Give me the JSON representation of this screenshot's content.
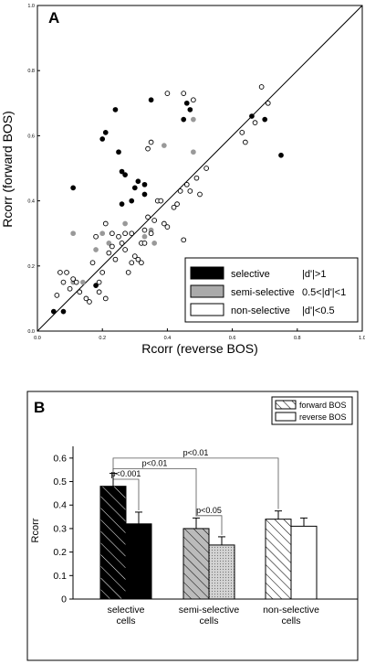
{
  "chart_data": [
    {
      "panel_label": "A",
      "type": "scatter",
      "xlabel": "Rcorr (reverse BOS)",
      "ylabel": "Rcorr (forward BOS)",
      "xlim": [
        0,
        1
      ],
      "ylim": [
        0,
        1
      ],
      "x_ticks": [
        "0.0",
        "0.2",
        "0.4",
        "0.6",
        "0.8",
        "1.0"
      ],
      "y_ticks": [
        "0.0",
        "0.2",
        "0.4",
        "0.6",
        "0.8",
        "1.0"
      ],
      "diagonal": "unity line",
      "legend_position": "bottom-right",
      "legend": [
        {
          "label": "selective",
          "criterion": "|d'|>1",
          "color": "#000000"
        },
        {
          "label": "semi-selective",
          "criterion": "0.5<|d'|<1",
          "color": "#999999"
        },
        {
          "label": "non-selective",
          "criterion": "|d'|<0.5",
          "color": "#ffffff"
        }
      ],
      "series": [
        {
          "name": "selective",
          "color": "#000000",
          "points": [
            [
              0.05,
              0.06
            ],
            [
              0.08,
              0.06
            ],
            [
              0.11,
              0.44
            ],
            [
              0.18,
              0.14
            ],
            [
              0.2,
              0.59
            ],
            [
              0.21,
              0.61
            ],
            [
              0.24,
              0.68
            ],
            [
              0.25,
              0.55
            ],
            [
              0.26,
              0.39
            ],
            [
              0.26,
              0.49
            ],
            [
              0.27,
              0.48
            ],
            [
              0.29,
              0.4
            ],
            [
              0.3,
              0.44
            ],
            [
              0.31,
              0.46
            ],
            [
              0.33,
              0.45
            ],
            [
              0.33,
              0.42
            ],
            [
              0.35,
              0.71
            ],
            [
              0.45,
              0.65
            ],
            [
              0.46,
              0.7
            ],
            [
              0.47,
              0.68
            ],
            [
              0.66,
              0.66
            ],
            [
              0.7,
              0.65
            ],
            [
              0.75,
              0.54
            ]
          ]
        },
        {
          "name": "semi-selective",
          "color": "#999999",
          "points": [
            [
              0.11,
              0.15
            ],
            [
              0.11,
              0.3
            ],
            [
              0.14,
              0.15
            ],
            [
              0.18,
              0.25
            ],
            [
              0.2,
              0.3
            ],
            [
              0.22,
              0.27
            ],
            [
              0.27,
              0.33
            ],
            [
              0.33,
              0.29
            ],
            [
              0.35,
              0.31
            ],
            [
              0.36,
              0.27
            ],
            [
              0.39,
              0.57
            ],
            [
              0.48,
              0.55
            ],
            [
              0.48,
              0.65
            ]
          ]
        },
        {
          "name": "non-selective",
          "color": "#ffffff",
          "points": [
            [
              0.06,
              0.11
            ],
            [
              0.07,
              0.18
            ],
            [
              0.08,
              0.15
            ],
            [
              0.09,
              0.18
            ],
            [
              0.1,
              0.13
            ],
            [
              0.11,
              0.16
            ],
            [
              0.12,
              0.15
            ],
            [
              0.13,
              0.12
            ],
            [
              0.15,
              0.1
            ],
            [
              0.16,
              0.09
            ],
            [
              0.17,
              0.21
            ],
            [
              0.18,
              0.29
            ],
            [
              0.19,
              0.15
            ],
            [
              0.2,
              0.18
            ],
            [
              0.21,
              0.33
            ],
            [
              0.22,
              0.24
            ],
            [
              0.23,
              0.26
            ],
            [
              0.23,
              0.3
            ],
            [
              0.24,
              0.22
            ],
            [
              0.25,
              0.29
            ],
            [
              0.26,
              0.27
            ],
            [
              0.27,
              0.25
            ],
            [
              0.27,
              0.3
            ],
            [
              0.28,
              0.18
            ],
            [
              0.29,
              0.3
            ],
            [
              0.29,
              0.21
            ],
            [
              0.3,
              0.23
            ],
            [
              0.31,
              0.22
            ],
            [
              0.32,
              0.27
            ],
            [
              0.32,
              0.21
            ],
            [
              0.33,
              0.27
            ],
            [
              0.33,
              0.31
            ],
            [
              0.34,
              0.35
            ],
            [
              0.35,
              0.3
            ],
            [
              0.36,
              0.34
            ],
            [
              0.37,
              0.4
            ],
            [
              0.38,
              0.4
            ],
            [
              0.39,
              0.33
            ],
            [
              0.4,
              0.32
            ],
            [
              0.4,
              0.73
            ],
            [
              0.42,
              0.38
            ],
            [
              0.43,
              0.39
            ],
            [
              0.44,
              0.43
            ],
            [
              0.45,
              0.28
            ],
            [
              0.45,
              0.73
            ],
            [
              0.46,
              0.45
            ],
            [
              0.47,
              0.43
            ],
            [
              0.48,
              0.71
            ],
            [
              0.49,
              0.47
            ],
            [
              0.5,
              0.42
            ],
            [
              0.52,
              0.5
            ],
            [
              0.34,
              0.56
            ],
            [
              0.35,
              0.58
            ],
            [
              0.63,
              0.61
            ],
            [
              0.64,
              0.58
            ],
            [
              0.67,
              0.64
            ],
            [
              0.69,
              0.75
            ],
            [
              0.71,
              0.7
            ],
            [
              0.21,
              0.1
            ],
            [
              0.19,
              0.12
            ]
          ]
        }
      ]
    },
    {
      "panel_label": "B",
      "type": "bar",
      "ylabel": "Rcorr",
      "ylim": [
        0,
        0.65
      ],
      "y_ticks": [
        "0",
        "0.1",
        "0.2",
        "0.3",
        "0.4",
        "0.5",
        "0.6"
      ],
      "categories": [
        "selective\ncells",
        "semi-selective\ncells",
        "non-selective\ncells"
      ],
      "legend_position": "top-right",
      "legend": [
        {
          "label": "forward BOS",
          "pattern": "hatched"
        },
        {
          "label": "reverse BOS",
          "pattern": "open"
        }
      ],
      "series": [
        {
          "name": "forward BOS",
          "values": [
            0.48,
            0.3,
            0.34
          ],
          "errors": [
            0.055,
            0.045,
            0.035
          ],
          "colors": [
            "#000000",
            "#bbbbbb",
            "#ffffff"
          ]
        },
        {
          "name": "reverse BOS",
          "values": [
            0.32,
            0.23,
            0.31
          ],
          "errors": [
            0.05,
            0.035,
            0.035
          ],
          "colors": [
            "#000000",
            "#bbbbbb",
            "#ffffff"
          ]
        }
      ],
      "significance": [
        {
          "label": "p<0.001",
          "from": [
            0,
            0
          ],
          "to": [
            0,
            1
          ],
          "level": 0.51
        },
        {
          "label": "p<0.01",
          "from": [
            0,
            0
          ],
          "to": [
            1,
            0
          ],
          "level": 0.555
        },
        {
          "label": "p<0.05",
          "from": [
            1,
            0
          ],
          "to": [
            1,
            1
          ],
          "level": 0.355
        },
        {
          "label": "p<0.01",
          "from": [
            0,
            0
          ],
          "to": [
            2,
            0
          ],
          "level": 0.6
        }
      ]
    }
  ]
}
